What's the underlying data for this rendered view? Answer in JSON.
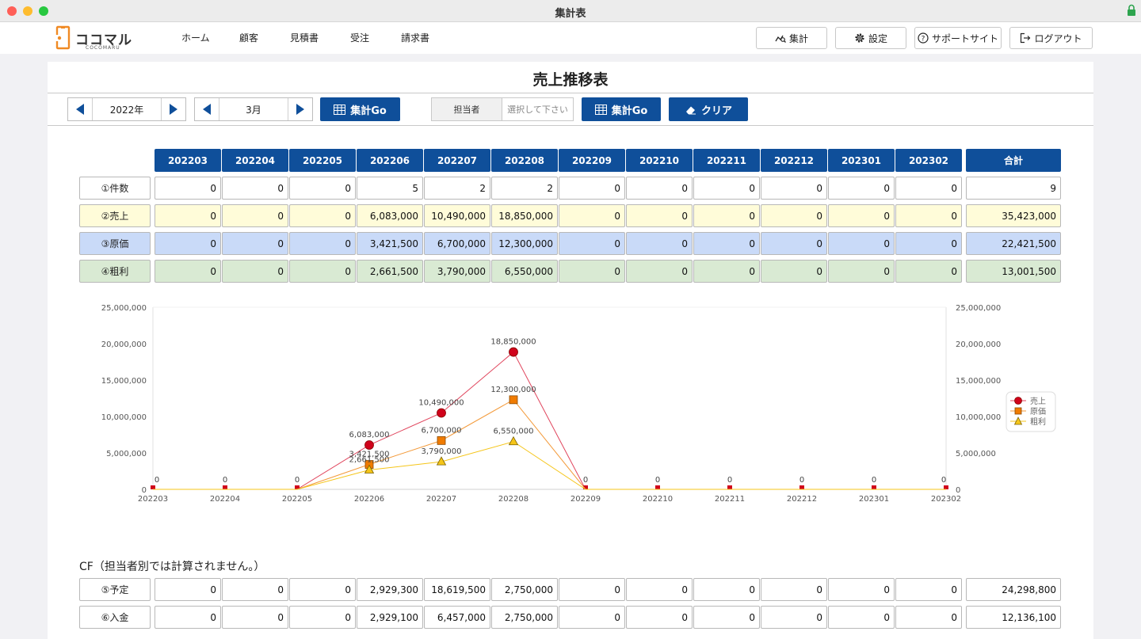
{
  "window": {
    "title": "集計表"
  },
  "header": {
    "logo_text": "ココマル",
    "logo_sub": "COCOMARU",
    "nav": [
      "ホーム",
      "顧客",
      "見積書",
      "受注",
      "請求書"
    ],
    "buttons": {
      "summary": "集計",
      "settings": "設定",
      "support": "サポートサイト",
      "logout": "ログアウト"
    }
  },
  "page": {
    "title": "売上推移表"
  },
  "controls": {
    "year": "2022年",
    "month": "3月",
    "go_label": "集計Go",
    "staff_label": "担当者",
    "staff_placeholder": "選択して下さい",
    "go2_label": "集計Go",
    "clear_label": "クリア"
  },
  "table": {
    "columns": [
      "202203",
      "202204",
      "202205",
      "202206",
      "202207",
      "202208",
      "202209",
      "202210",
      "202211",
      "202212",
      "202301",
      "202302"
    ],
    "total_label": "合計",
    "rows": [
      {
        "label": "①件数",
        "values": [
          "0",
          "0",
          "0",
          "5",
          "2",
          "2",
          "0",
          "0",
          "0",
          "0",
          "0",
          "0"
        ],
        "total": "9",
        "bg": "#ffffff"
      },
      {
        "label": "②売上",
        "values": [
          "0",
          "0",
          "0",
          "6,083,000",
          "10,490,000",
          "18,850,000",
          "0",
          "0",
          "0",
          "0",
          "0",
          "0"
        ],
        "total": "35,423,000",
        "bg": "#fffcd9"
      },
      {
        "label": "③原価",
        "values": [
          "0",
          "0",
          "0",
          "3,421,500",
          "6,700,000",
          "12,300,000",
          "0",
          "0",
          "0",
          "0",
          "0",
          "0"
        ],
        "total": "22,421,500",
        "bg": "#c9daf8"
      },
      {
        "label": "④粗利",
        "values": [
          "0",
          "0",
          "0",
          "2,661,500",
          "3,790,000",
          "6,550,000",
          "0",
          "0",
          "0",
          "0",
          "0",
          "0"
        ],
        "total": "13,001,500",
        "bg": "#d9ead3"
      }
    ]
  },
  "chart_data": {
    "type": "line",
    "x": [
      "202203",
      "202204",
      "202205",
      "202206",
      "202207",
      "202208",
      "202209",
      "202210",
      "202211",
      "202212",
      "202301",
      "202302"
    ],
    "ylim": [
      0,
      25000000
    ],
    "yticks": [
      "0",
      "5,000,000",
      "10,000,000",
      "15,000,000",
      "20,000,000",
      "25,000,000"
    ],
    "legend_position": "right",
    "series": [
      {
        "name": "売上",
        "values": [
          0,
          0,
          0,
          6083000,
          10490000,
          18850000,
          0,
          0,
          0,
          0,
          0,
          0
        ],
        "labels": [
          "0",
          "0",
          "0",
          "6,083,000",
          "10,490,000",
          "18,850,000",
          "0",
          "0",
          "0",
          "0",
          "0",
          "0"
        ],
        "color": "#e0445c",
        "marker": "circle",
        "marker_color": "#d0021b"
      },
      {
        "name": "原価",
        "values": [
          0,
          0,
          0,
          3421500,
          6700000,
          12300000,
          0,
          0,
          0,
          0,
          0,
          0
        ],
        "labels": [
          "",
          "",
          "",
          "3,421,500",
          "6,700,000",
          "12,300,000",
          "",
          "",
          "",
          "",
          "",
          ""
        ],
        "color": "#f39a3a",
        "marker": "square",
        "marker_color": "#f07b00"
      },
      {
        "name": "粗利",
        "values": [
          0,
          0,
          0,
          2661500,
          3790000,
          6550000,
          0,
          0,
          0,
          0,
          0,
          0
        ],
        "labels": [
          "",
          "",
          "",
          "2,661,500",
          "3,790,000",
          "6,550,000",
          "",
          "",
          "",
          "",
          "",
          ""
        ],
        "color": "#f5c518",
        "marker": "triangle",
        "marker_color": "#f5c518"
      }
    ]
  },
  "cf": {
    "title": "CF（担当者別では計算されません。）",
    "rows": [
      {
        "label": "⑤予定",
        "values": [
          "0",
          "0",
          "0",
          "2,929,300",
          "18,619,500",
          "2,750,000",
          "0",
          "0",
          "0",
          "0",
          "0",
          "0"
        ],
        "total": "24,298,800"
      },
      {
        "label": "⑥入金",
        "values": [
          "0",
          "0",
          "0",
          "2,929,100",
          "6,457,000",
          "2,750,000",
          "0",
          "0",
          "0",
          "0",
          "0",
          "0"
        ],
        "total": "12,136,100"
      }
    ]
  }
}
